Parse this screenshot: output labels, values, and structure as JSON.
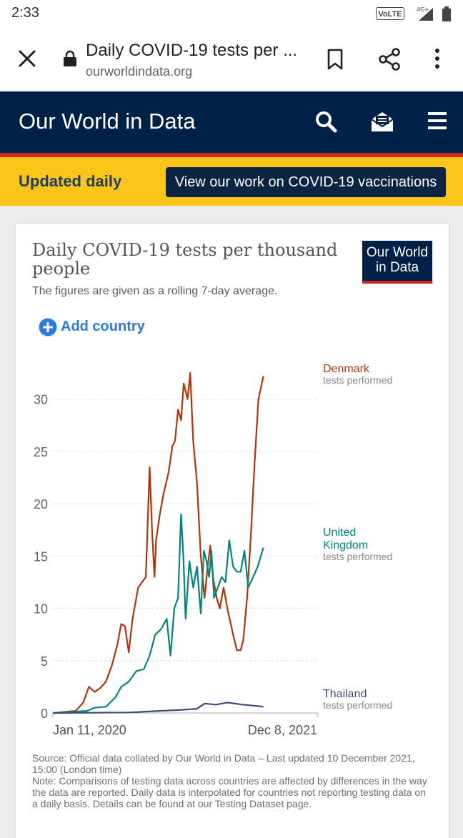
{
  "status": {
    "time": "2:33",
    "volte": "VoLTE",
    "network": "4G+"
  },
  "browser": {
    "title": "Daily COVID-19 tests per ...",
    "url": "ourworldindata.org"
  },
  "site": {
    "brand": "Our World in Data",
    "banner_text": "Updated daily",
    "banner_button": "View our work on COVID-19 vaccinations"
  },
  "card": {
    "title": "Daily COVID-19 tests per thousand people",
    "subtitle": "The figures are given as a rolling 7-day average.",
    "logo_line1": "Our World",
    "logo_line2": "in Data",
    "add_country": "Add country",
    "source": "Source: Official data collated by Our World in Data – Last updated 10 December 2021, 15:00 (London time)",
    "note": "Note: Comparisons of testing data across countries are affected by differences in the way the data are reported. Daily data is interpolated for countries not reporting testing data on a daily basis. Details can be found at our Testing Dataset page."
  },
  "chart_data": {
    "type": "line",
    "title": "Daily COVID-19 tests per thousand people",
    "xlabel": "",
    "ylabel": "",
    "ylim": [
      0,
      33.6
    ],
    "yticks": [
      0,
      5,
      10,
      15,
      20,
      25,
      30
    ],
    "xtick_labels": [
      "Jan 11, 2020",
      "Dec 8, 2021"
    ],
    "x_range_days": [
      0,
      697
    ],
    "grid": true,
    "series": [
      {
        "name": "Denmark",
        "sublabel": "tests performed",
        "color": "#b13507",
        "points": [
          [
            0,
            0
          ],
          [
            60,
            0.2
          ],
          [
            80,
            1.0
          ],
          [
            95,
            2.5
          ],
          [
            110,
            2.0
          ],
          [
            125,
            2.4
          ],
          [
            140,
            3.0
          ],
          [
            155,
            4.5
          ],
          [
            170,
            6.5
          ],
          [
            180,
            8.5
          ],
          [
            190,
            8.3
          ],
          [
            200,
            5.8
          ],
          [
            210,
            9.0
          ],
          [
            225,
            12.0
          ],
          [
            235,
            12.5
          ],
          [
            245,
            13.0
          ],
          [
            255,
            23.5
          ],
          [
            262,
            17.0
          ],
          [
            268,
            13.0
          ],
          [
            272,
            16.5
          ],
          [
            282,
            19.0
          ],
          [
            292,
            21.0
          ],
          [
            305,
            23.0
          ],
          [
            315,
            25.5
          ],
          [
            322,
            26.0
          ],
          [
            330,
            29.0
          ],
          [
            338,
            28.0
          ],
          [
            345,
            31.5
          ],
          [
            355,
            30.0
          ],
          [
            362,
            32.5
          ],
          [
            370,
            26.0
          ],
          [
            380,
            22.0
          ],
          [
            390,
            15.0
          ],
          [
            400,
            11.0
          ],
          [
            408,
            14.0
          ],
          [
            415,
            16.0
          ],
          [
            422,
            13.0
          ],
          [
            432,
            11.0
          ],
          [
            440,
            10.0
          ],
          [
            450,
            12.0
          ],
          [
            460,
            10.0
          ],
          [
            475,
            7.5
          ],
          [
            485,
            6.0
          ],
          [
            495,
            6.0
          ],
          [
            502,
            7.0
          ],
          [
            512,
            11.0
          ],
          [
            522,
            17.0
          ],
          [
            532,
            24.0
          ],
          [
            542,
            30.0
          ],
          [
            555,
            32.2
          ]
        ]
      },
      {
        "name": "United Kingdom",
        "sublabel": "tests performed",
        "color": "#00847e",
        "points": [
          [
            0,
            0
          ],
          [
            90,
            0.2
          ],
          [
            110,
            0.5
          ],
          [
            140,
            0.6
          ],
          [
            165,
            1.5
          ],
          [
            180,
            2.5
          ],
          [
            200,
            3.0
          ],
          [
            220,
            4.0
          ],
          [
            240,
            4.2
          ],
          [
            255,
            5.5
          ],
          [
            270,
            7.5
          ],
          [
            285,
            8.0
          ],
          [
            300,
            9.0
          ],
          [
            310,
            5.5
          ],
          [
            320,
            10.0
          ],
          [
            330,
            11.0
          ],
          [
            338,
            19.0
          ],
          [
            344,
            15.0
          ],
          [
            350,
            9.0
          ],
          [
            360,
            14.5
          ],
          [
            370,
            12.0
          ],
          [
            380,
            14.0
          ],
          [
            390,
            9.5
          ],
          [
            398,
            15.5
          ],
          [
            405,
            14.5
          ],
          [
            412,
            13.0
          ],
          [
            418,
            15.5
          ],
          [
            425,
            11.0
          ],
          [
            435,
            12.0
          ],
          [
            445,
            13.0
          ],
          [
            455,
            12.5
          ],
          [
            465,
            16.5
          ],
          [
            475,
            14.0
          ],
          [
            485,
            13.5
          ],
          [
            495,
            13.5
          ],
          [
            505,
            15.5
          ],
          [
            515,
            12.0
          ],
          [
            528,
            13.0
          ],
          [
            540,
            14.0
          ],
          [
            555,
            15.8
          ]
        ]
      },
      {
        "name": "Thailand",
        "sublabel": "tests performed",
        "color": "#3a4e79",
        "points": [
          [
            0,
            0
          ],
          [
            200,
            0.05
          ],
          [
            280,
            0.2
          ],
          [
            340,
            0.3
          ],
          [
            380,
            0.4
          ],
          [
            400,
            0.9
          ],
          [
            430,
            0.8
          ],
          [
            460,
            1.0
          ],
          [
            500,
            0.8
          ],
          [
            530,
            0.7
          ],
          [
            555,
            0.6
          ]
        ]
      }
    ]
  }
}
